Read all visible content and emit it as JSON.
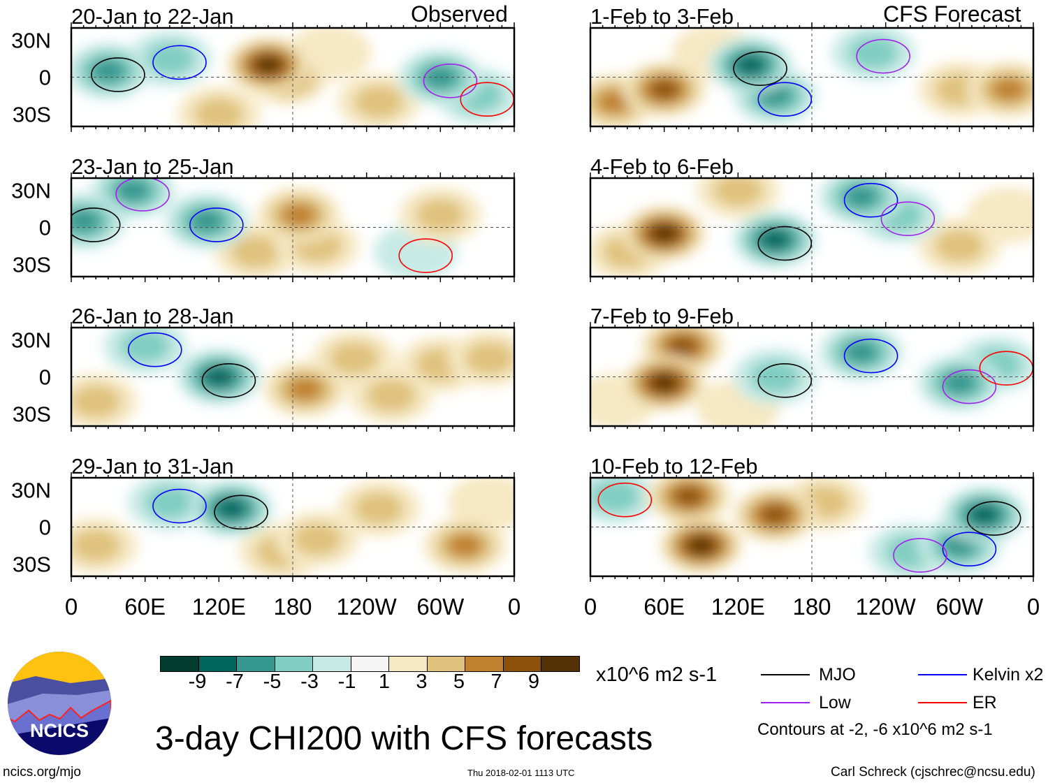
{
  "title": "3-day CHI200 with CFS forecasts",
  "observed_label": "Observed",
  "forecast_label": "CFS Forecast",
  "units": "x10^6 m2 s-1",
  "contour_note": "Contours at -2, -6 x10^6 m2 s-1",
  "site": "ncics.org/mjo",
  "logo_text": "NCICS",
  "timestamp": "Thu 2018-02-01 1113 UTC",
  "credit": "Carl Schreck (cjschrec@ncsu.edu)",
  "lat_labels": [
    "30N",
    "0",
    "30S"
  ],
  "lon_labels": [
    "0",
    "60E",
    "120E",
    "180",
    "120W",
    "60W",
    "0"
  ],
  "legend": [
    {
      "name": "MJO",
      "color": "#000000"
    },
    {
      "name": "Kelvin x2",
      "color": "#0000ff"
    },
    {
      "name": "Low",
      "color": "#a020f0"
    },
    {
      "name": "ER",
      "color": "#ff0000"
    }
  ],
  "colorbar": {
    "labels": [
      "-9",
      "-7",
      "-5",
      "-3",
      "-1",
      "1",
      "3",
      "5",
      "7",
      "9"
    ],
    "colors": [
      "#003c30",
      "#01665e",
      "#35978f",
      "#80cdc1",
      "#c7eae5",
      "#f5f5f5",
      "#f6e8c3",
      "#dfc27d",
      "#bf812d",
      "#8c510a",
      "#543005"
    ]
  },
  "chart_data": {
    "type": "heatmap",
    "variable": "CHI200 anomaly",
    "lat_range": [
      -40,
      40
    ],
    "lon_range": [
      0,
      360
    ],
    "panels": [
      {
        "title": "20-Jan to 22-Jan",
        "anomalies": [
          [
            160,
            10,
            9
          ],
          [
            175,
            0,
            6
          ],
          [
            30,
            5,
            -5
          ],
          [
            80,
            15,
            -4
          ],
          [
            300,
            0,
            -5
          ],
          [
            330,
            -15,
            -3
          ],
          [
            120,
            -30,
            3
          ],
          [
            250,
            -20,
            3
          ],
          [
            210,
            20,
            2
          ]
        ]
      },
      {
        "title": "1-Feb to 3-Feb",
        "anomalies": [
          [
            60,
            -10,
            7
          ],
          [
            20,
            -20,
            5
          ],
          [
            130,
            10,
            -7
          ],
          [
            150,
            -15,
            -5
          ],
          [
            230,
            20,
            -3
          ],
          [
            300,
            -10,
            3
          ],
          [
            340,
            -10,
            5
          ],
          [
            100,
            20,
            2
          ]
        ]
      },
      {
        "title": "23-Jan to 25-Jan",
        "anomalies": [
          [
            10,
            5,
            -6
          ],
          [
            110,
            5,
            -6
          ],
          [
            50,
            30,
            -5
          ],
          [
            185,
            10,
            6
          ],
          [
            200,
            -15,
            4
          ],
          [
            150,
            -20,
            3
          ],
          [
            300,
            10,
            3
          ],
          [
            280,
            -20,
            -2
          ]
        ]
      },
      {
        "title": "4-Feb to 6-Feb",
        "anomalies": [
          [
            60,
            -5,
            9
          ],
          [
            120,
            30,
            3
          ],
          [
            150,
            -10,
            -7
          ],
          [
            220,
            25,
            -5
          ],
          [
            250,
            10,
            -4
          ],
          [
            300,
            -15,
            3
          ],
          [
            30,
            -20,
            3
          ],
          [
            340,
            10,
            2
          ]
        ]
      },
      {
        "title": "26-Jan to 28-Jan",
        "anomalies": [
          [
            120,
            0,
            -8
          ],
          [
            60,
            25,
            -4
          ],
          [
            190,
            -10,
            5
          ],
          [
            260,
            -15,
            4
          ],
          [
            300,
            10,
            3
          ],
          [
            20,
            -20,
            3
          ],
          [
            340,
            15,
            3
          ],
          [
            230,
            15,
            3
          ]
        ]
      },
      {
        "title": "7-Feb to 9-Feb",
        "anomalies": [
          [
            60,
            -5,
            9
          ],
          [
            75,
            25,
            7
          ],
          [
            150,
            0,
            -3
          ],
          [
            220,
            20,
            -5
          ],
          [
            300,
            -5,
            -5
          ],
          [
            330,
            10,
            -3
          ],
          [
            20,
            -20,
            2
          ],
          [
            120,
            -25,
            2
          ]
        ]
      },
      {
        "title": "29-Jan to 31-Jan",
        "anomalies": [
          [
            130,
            15,
            -8
          ],
          [
            80,
            20,
            -4
          ],
          [
            20,
            -15,
            3
          ],
          [
            200,
            -10,
            4
          ],
          [
            250,
            15,
            3
          ],
          [
            320,
            -15,
            5
          ],
          [
            170,
            -20,
            3
          ],
          [
            340,
            20,
            2
          ]
        ]
      },
      {
        "title": "10-Feb to 12-Feb",
        "anomalies": [
          [
            90,
            -15,
            9
          ],
          [
            80,
            25,
            7
          ],
          [
            150,
            10,
            7
          ],
          [
            190,
            20,
            3
          ],
          [
            320,
            10,
            -8
          ],
          [
            300,
            -15,
            -5
          ],
          [
            260,
            -20,
            -3
          ],
          [
            20,
            25,
            -4
          ]
        ]
      }
    ]
  }
}
